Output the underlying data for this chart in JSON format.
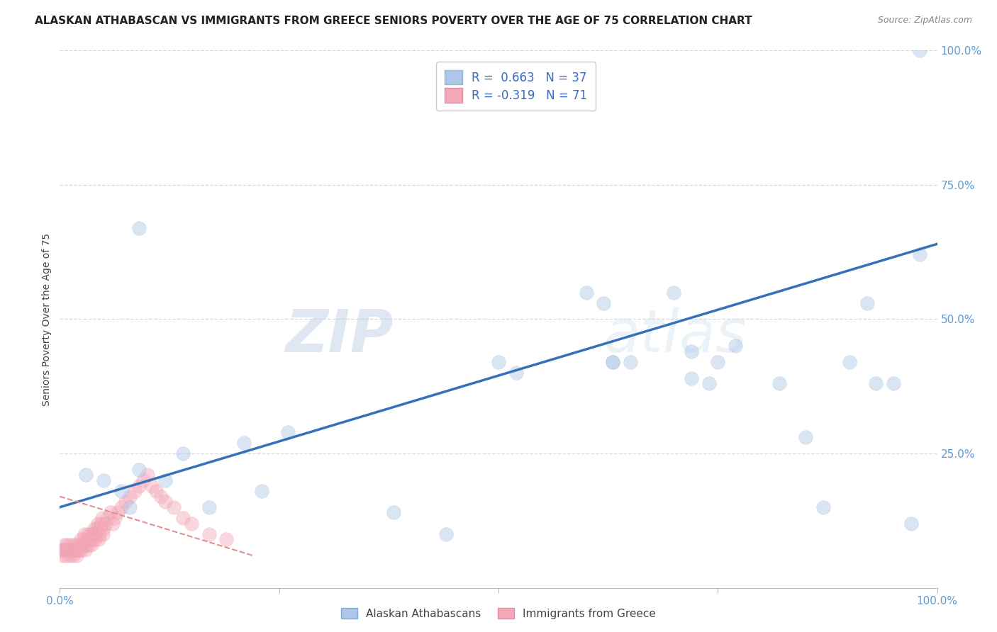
{
  "title": "ALASKAN ATHABASCAN VS IMMIGRANTS FROM GREECE SENIORS POVERTY OVER THE AGE OF 75 CORRELATION CHART",
  "source": "Source: ZipAtlas.com",
  "ylabel": "Seniors Poverty Over the Age of 75",
  "xlim": [
    0.0,
    1.0
  ],
  "ylim": [
    0.0,
    1.0
  ],
  "xticks": [
    0.0,
    0.25,
    0.5,
    0.75,
    1.0
  ],
  "xticklabels": [
    "0.0%",
    "",
    "",
    "",
    "100.0%"
  ],
  "ytick_positions": [
    0.25,
    0.5,
    0.75,
    1.0
  ],
  "yticklabels": [
    "25.0%",
    "50.0%",
    "75.0%",
    "100.0%"
  ],
  "background_color": "#ffffff",
  "grid_color": "#d8d8d8",
  "watermark": "ZIPatlas",
  "legend_color1": "#aec6e8",
  "legend_color2": "#f4a8b8",
  "blue_scatter_x": [
    0.03,
    0.05,
    0.07,
    0.08,
    0.09,
    0.09,
    0.12,
    0.14,
    0.17,
    0.21,
    0.23,
    0.26,
    0.38,
    0.44,
    0.5,
    0.52,
    0.62,
    0.63,
    0.65,
    0.7,
    0.72,
    0.74,
    0.75,
    0.77,
    0.82,
    0.85,
    0.87,
    0.9,
    0.92,
    0.93,
    0.95,
    0.97,
    0.98,
    0.98,
    0.6,
    0.63,
    0.72
  ],
  "blue_scatter_y": [
    0.21,
    0.2,
    0.18,
    0.15,
    0.67,
    0.22,
    0.2,
    0.25,
    0.15,
    0.27,
    0.18,
    0.29,
    0.14,
    0.1,
    0.42,
    0.4,
    0.53,
    0.42,
    0.42,
    0.55,
    0.39,
    0.38,
    0.42,
    0.45,
    0.38,
    0.28,
    0.15,
    0.42,
    0.53,
    0.38,
    0.38,
    0.12,
    0.62,
    1.0,
    0.55,
    0.42,
    0.44
  ],
  "pink_scatter_x": [
    0.002,
    0.003,
    0.004,
    0.005,
    0.006,
    0.007,
    0.008,
    0.009,
    0.01,
    0.011,
    0.012,
    0.013,
    0.014,
    0.015,
    0.016,
    0.017,
    0.018,
    0.019,
    0.02,
    0.021,
    0.022,
    0.023,
    0.024,
    0.025,
    0.026,
    0.027,
    0.028,
    0.029,
    0.03,
    0.031,
    0.032,
    0.033,
    0.034,
    0.035,
    0.036,
    0.037,
    0.038,
    0.039,
    0.04,
    0.041,
    0.042,
    0.043,
    0.044,
    0.045,
    0.046,
    0.047,
    0.048,
    0.049,
    0.05,
    0.052,
    0.055,
    0.058,
    0.06,
    0.063,
    0.066,
    0.07,
    0.075,
    0.08,
    0.085,
    0.09,
    0.095,
    0.1,
    0.105,
    0.11,
    0.115,
    0.12,
    0.13,
    0.14,
    0.15,
    0.17,
    0.19
  ],
  "pink_scatter_y": [
    0.07,
    0.06,
    0.07,
    0.08,
    0.07,
    0.06,
    0.07,
    0.08,
    0.07,
    0.06,
    0.07,
    0.08,
    0.07,
    0.06,
    0.07,
    0.08,
    0.07,
    0.06,
    0.07,
    0.08,
    0.07,
    0.08,
    0.09,
    0.07,
    0.08,
    0.09,
    0.1,
    0.07,
    0.08,
    0.09,
    0.1,
    0.08,
    0.09,
    0.1,
    0.08,
    0.09,
    0.1,
    0.11,
    0.09,
    0.1,
    0.11,
    0.12,
    0.09,
    0.1,
    0.11,
    0.12,
    0.13,
    0.1,
    0.11,
    0.12,
    0.13,
    0.14,
    0.12,
    0.13,
    0.14,
    0.15,
    0.16,
    0.17,
    0.18,
    0.19,
    0.2,
    0.21,
    0.19,
    0.18,
    0.17,
    0.16,
    0.15,
    0.13,
    0.12,
    0.1,
    0.09
  ],
  "blue_line_x": [
    0.0,
    1.0
  ],
  "blue_line_y": [
    0.15,
    0.64
  ],
  "pink_line_x": [
    0.0,
    0.22
  ],
  "pink_line_y": [
    0.17,
    0.06
  ],
  "scatter_size": 200,
  "scatter_alpha": 0.45,
  "line_color_blue": "#3570b8",
  "line_color_pink": "#e09090",
  "title_fontsize": 11,
  "axis_label_fontsize": 10,
  "tick_fontsize": 11,
  "legend_fontsize": 12,
  "tick_color": "#5b9bd5"
}
